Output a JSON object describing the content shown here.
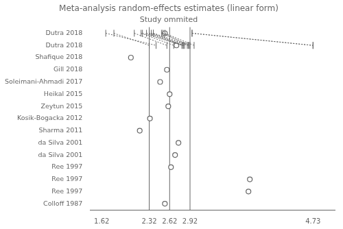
{
  "chart_data": {
    "type": "forest",
    "title": "Meta-analysis random-effects estimates (linear form)",
    "subtitle": "Study ommited",
    "categories": [
      "Dutra 2018",
      "Dutra 2018",
      "Shafique 2018",
      "Gill 2018",
      "Soleimani-Ahmadi 2017",
      "Heikal 2015",
      "Zeytun 2015",
      "Kosik-Bogacka 2012",
      "Sharma 2011",
      "da Silva 2001",
      "da Silva 2001",
      "Ree 1997",
      "Ree 1997",
      "Ree 1997",
      "Colloff 1987"
    ],
    "values": [
      2.55,
      2.72,
      2.05,
      2.58,
      2.48,
      2.62,
      2.6,
      2.33,
      2.18,
      2.75,
      2.7,
      2.64,
      3.8,
      3.78,
      2.55
    ],
    "ci_low": [
      2.22,
      2.5,
      1.8,
      2.32,
      2.2,
      2.38,
      2.35,
      2.1,
      1.68,
      2.55,
      2.52,
      2.38,
      2.95,
      2.95,
      2.28
    ],
    "ci_high": [
      2.82,
      2.9,
      2.32,
      2.84,
      2.68,
      2.9,
      2.82,
      2.58,
      2.42,
      2.98,
      2.92,
      2.88,
      4.73,
      4.73,
      2.8
    ],
    "reference_lines": [
      2.32,
      2.62,
      2.92
    ],
    "xlim": [
      1.45,
      5.05
    ],
    "xticks": [
      1.62,
      2.32,
      2.62,
      2.92,
      4.73
    ],
    "grid": false,
    "marker": "circle"
  }
}
